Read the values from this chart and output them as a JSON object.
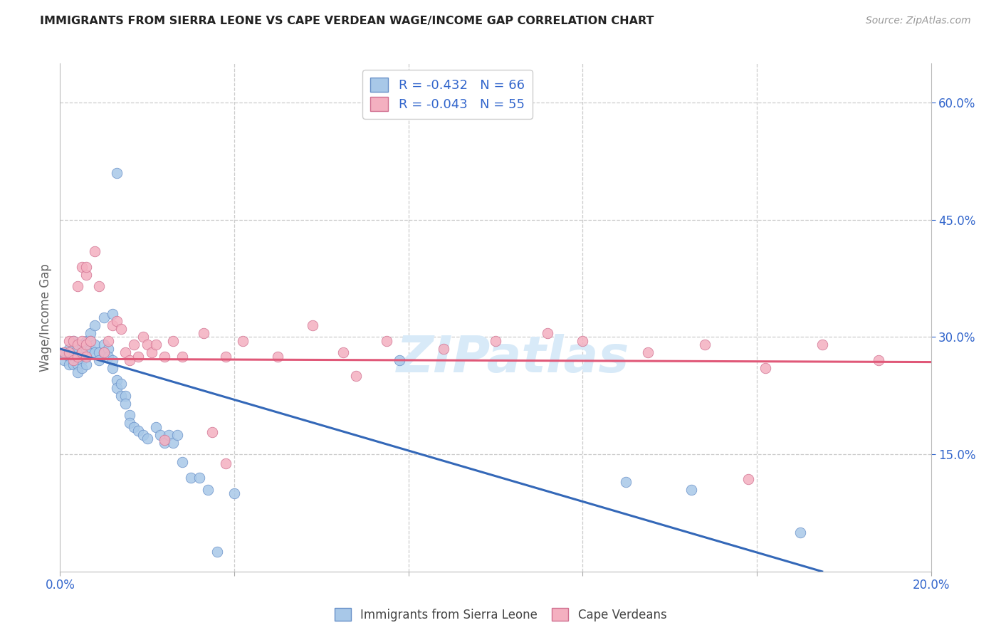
{
  "title": "IMMIGRANTS FROM SIERRA LEONE VS CAPE VERDEAN WAGE/INCOME GAP CORRELATION CHART",
  "source": "Source: ZipAtlas.com",
  "ylabel": "Wage/Income Gap",
  "right_yticks": [
    0.15,
    0.3,
    0.45,
    0.6
  ],
  "right_yticklabels": [
    "15.0%",
    "30.0%",
    "45.0%",
    "60.0%"
  ],
  "legend_blue_label": "R = -0.432   N = 66",
  "legend_pink_label": "R = -0.043   N = 55",
  "legend_bottom_blue": "Immigrants from Sierra Leone",
  "legend_bottom_pink": "Cape Verdeans",
  "xmin": 0.0,
  "xmax": 0.2,
  "ymin": 0.0,
  "ymax": 0.65,
  "blue_color": "#a8c8e8",
  "pink_color": "#f4b0c0",
  "blue_line_color": "#3468b8",
  "pink_line_color": "#e05878",
  "watermark_color": "#d8eaf8",
  "blue_scatter_x": [
    0.001,
    0.001,
    0.002,
    0.002,
    0.002,
    0.003,
    0.003,
    0.003,
    0.003,
    0.004,
    0.004,
    0.004,
    0.004,
    0.005,
    0.005,
    0.005,
    0.005,
    0.006,
    0.006,
    0.006,
    0.006,
    0.007,
    0.007,
    0.007,
    0.008,
    0.008,
    0.009,
    0.009,
    0.01,
    0.01,
    0.011,
    0.011,
    0.012,
    0.012,
    0.013,
    0.013,
    0.014,
    0.014,
    0.015,
    0.015,
    0.016,
    0.016,
    0.017,
    0.018,
    0.019,
    0.02,
    0.022,
    0.023,
    0.024,
    0.025,
    0.026,
    0.027,
    0.028,
    0.03,
    0.032,
    0.034,
    0.008,
    0.01,
    0.012,
    0.013,
    0.036,
    0.04,
    0.078,
    0.13,
    0.145,
    0.17
  ],
  "blue_scatter_y": [
    0.28,
    0.27,
    0.285,
    0.275,
    0.265,
    0.295,
    0.285,
    0.275,
    0.265,
    0.285,
    0.275,
    0.265,
    0.255,
    0.29,
    0.28,
    0.27,
    0.26,
    0.295,
    0.285,
    0.275,
    0.265,
    0.305,
    0.295,
    0.285,
    0.29,
    0.28,
    0.28,
    0.27,
    0.29,
    0.28,
    0.285,
    0.275,
    0.27,
    0.26,
    0.245,
    0.235,
    0.24,
    0.225,
    0.225,
    0.215,
    0.2,
    0.19,
    0.185,
    0.18,
    0.175,
    0.17,
    0.185,
    0.175,
    0.165,
    0.175,
    0.165,
    0.175,
    0.14,
    0.12,
    0.12,
    0.105,
    0.315,
    0.325,
    0.33,
    0.51,
    0.025,
    0.1,
    0.27,
    0.115,
    0.105,
    0.05
  ],
  "pink_scatter_x": [
    0.001,
    0.002,
    0.002,
    0.003,
    0.003,
    0.004,
    0.004,
    0.005,
    0.005,
    0.006,
    0.006,
    0.007,
    0.008,
    0.009,
    0.01,
    0.011,
    0.012,
    0.013,
    0.014,
    0.015,
    0.016,
    0.017,
    0.018,
    0.019,
    0.02,
    0.021,
    0.022,
    0.024,
    0.026,
    0.028,
    0.033,
    0.038,
    0.042,
    0.05,
    0.058,
    0.065,
    0.075,
    0.088,
    0.1,
    0.112,
    0.12,
    0.135,
    0.148,
    0.162,
    0.175,
    0.188,
    0.004,
    0.005,
    0.006,
    0.006,
    0.024,
    0.035,
    0.038,
    0.068,
    0.158
  ],
  "pink_scatter_y": [
    0.28,
    0.295,
    0.28,
    0.295,
    0.27,
    0.29,
    0.275,
    0.295,
    0.28,
    0.29,
    0.275,
    0.295,
    0.41,
    0.365,
    0.28,
    0.295,
    0.315,
    0.32,
    0.31,
    0.28,
    0.27,
    0.29,
    0.275,
    0.3,
    0.29,
    0.28,
    0.29,
    0.275,
    0.295,
    0.275,
    0.305,
    0.275,
    0.295,
    0.275,
    0.315,
    0.28,
    0.295,
    0.285,
    0.295,
    0.305,
    0.295,
    0.28,
    0.29,
    0.26,
    0.29,
    0.27,
    0.365,
    0.39,
    0.38,
    0.39,
    0.168,
    0.178,
    0.138,
    0.25,
    0.118
  ],
  "blue_line_x": [
    0.0,
    0.175
  ],
  "blue_line_y": [
    0.285,
    0.0
  ],
  "pink_line_x": [
    0.0,
    0.2
  ],
  "pink_line_y": [
    0.272,
    0.268
  ],
  "gridline_y": [
    0.15,
    0.3,
    0.45,
    0.6
  ],
  "gridline_x": [
    0.04,
    0.08,
    0.12,
    0.16
  ]
}
